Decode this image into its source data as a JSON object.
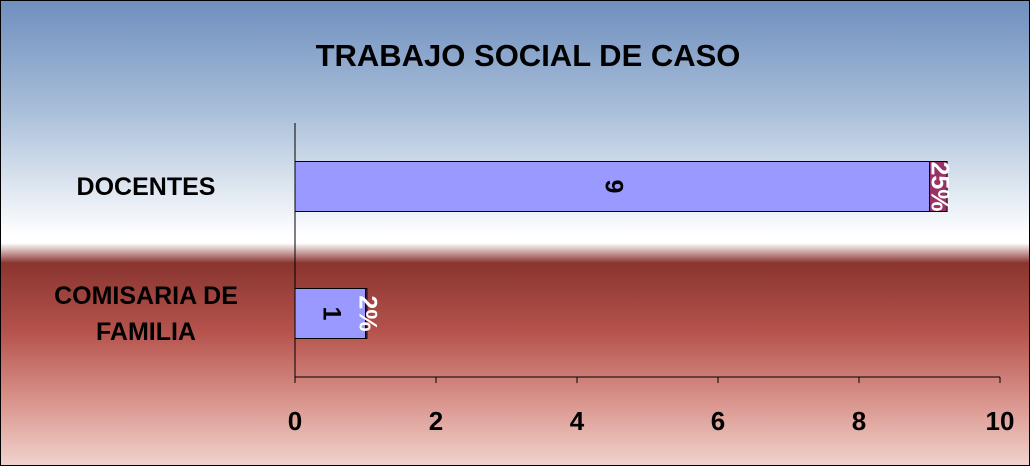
{
  "chart_data": {
    "type": "bar",
    "orientation": "horizontal",
    "stacked": true,
    "title": "TRABAJO SOCIAL DE CASO",
    "categories": [
      "DOCENTES",
      "COMISARIA DE FAMILIA"
    ],
    "series": [
      {
        "color": "#9999ff",
        "values": [
          9,
          1
        ]
      },
      {
        "color": "#993366",
        "values": [
          0.25,
          0.02
        ],
        "value_labels": [
          "25%",
          "2%"
        ]
      }
    ],
    "xlim": [
      0,
      10
    ],
    "xticks": [
      0,
      2,
      4,
      6,
      8,
      10
    ]
  }
}
